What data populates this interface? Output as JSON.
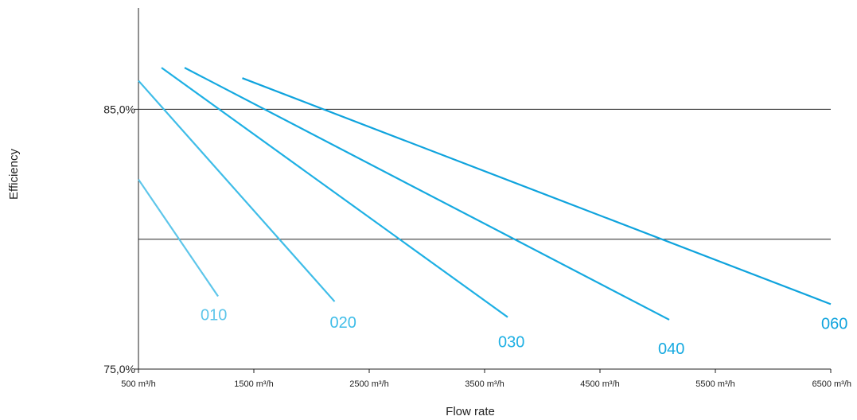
{
  "chart_data": {
    "type": "line",
    "title": "",
    "xlabel": "Flow rate",
    "ylabel": "Efficiency",
    "xlim": [
      500,
      6500
    ],
    "ylim": [
      75,
      88.9
    ],
    "x_ticks": [
      500,
      1500,
      2500,
      3500,
      4500,
      5500,
      6500
    ],
    "x_tick_labels": [
      "500 m³/h",
      "1500 m³/h",
      "2500 m³/h",
      "3500 m³/h",
      "4500 m³/h",
      "5500 m³/h",
      "6500 m³/h"
    ],
    "y_ticks": [
      75,
      85
    ],
    "y_tick_labels": [
      "75,0%",
      "85,0%"
    ],
    "gridlines_y": [
      80,
      85
    ],
    "grid": true,
    "legend": "none",
    "series": [
      {
        "name": "010",
        "color": "#5ec6ea",
        "x": [
          500,
          1190
        ],
        "y": [
          82.3,
          77.8
        ]
      },
      {
        "name": "020",
        "color": "#3fbde8",
        "x": [
          500,
          2200
        ],
        "y": [
          86.1,
          77.6
        ]
      },
      {
        "name": "030",
        "color": "#1eb0e4",
        "x": [
          700,
          3700
        ],
        "y": [
          86.6,
          77.0
        ]
      },
      {
        "name": "040",
        "color": "#15a9e0",
        "x": [
          900,
          5100
        ],
        "y": [
          86.6,
          76.9
        ]
      },
      {
        "name": "060",
        "color": "#0fa3dd",
        "x": [
          1400,
          6500
        ],
        "y": [
          86.2,
          77.5
        ]
      }
    ]
  }
}
